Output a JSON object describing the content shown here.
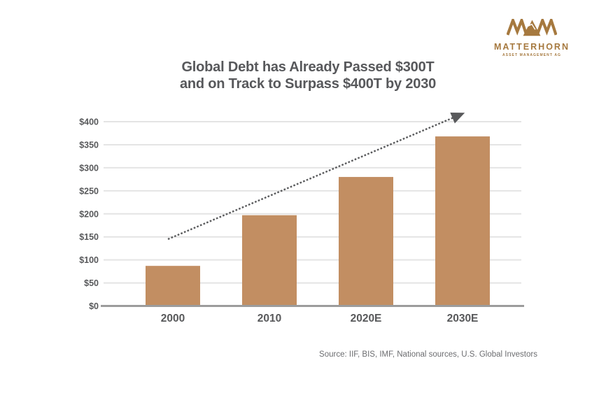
{
  "logo": {
    "monogram": "MAM",
    "name": "MATTERHORN",
    "subtitle": "ASSET MANAGEMENT AG",
    "color": "#a6793f"
  },
  "title": {
    "line1": "Global Debt has Already Passed $300T",
    "line2": "and on Track to Surpass $400T by 2030"
  },
  "source": "Source: IIF, BIS, IMF, National sources, U.S. Global Investors",
  "colors": {
    "bar": "#c28e62",
    "logo_gold": "#a6793f",
    "text_dark": "#58595b",
    "gridline": "#e4e4e4",
    "axis": "#9c9c9c",
    "arrow": "#58595b",
    "source_text": "#6c6d70"
  },
  "chart_data": {
    "type": "bar",
    "title": "Global Debt has Already Passed $300T and on Track to Surpass $400T by 2030",
    "categories": [
      "2000",
      "2010",
      "2020E",
      "2030E"
    ],
    "values": [
      87,
      197,
      280,
      368
    ],
    "xlabel": "",
    "ylabel": "",
    "ylim": [
      0,
      400
    ],
    "ytick_interval": 50,
    "ytick_labels": [
      "$0",
      "$50",
      "$100",
      "$150",
      "$200",
      "$250",
      "$300",
      "$350",
      "$400"
    ],
    "bar_color": "#c28e62",
    "grid": true,
    "legend": "none",
    "annotation_arrow": {
      "style": "dashed",
      "from_category_index": 0,
      "from_value": 145,
      "to_category_index": 3,
      "to_value": 418
    }
  }
}
